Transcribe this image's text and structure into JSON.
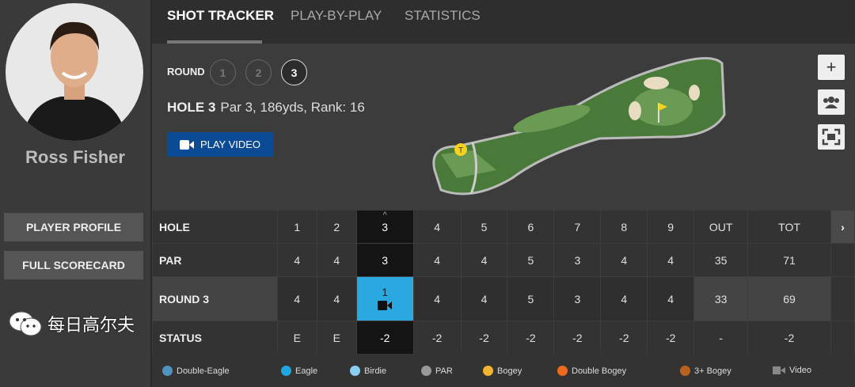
{
  "player": {
    "name": "Ross Fisher",
    "profile_label": "PLAYER PROFILE",
    "scorecard_label": "FULL SCORECARD"
  },
  "tabs": [
    {
      "label": "SHOT TRACKER",
      "active": true
    },
    {
      "label": "PLAY-BY-PLAY"
    },
    {
      "label": "STATISTICS"
    }
  ],
  "round": {
    "label": "ROUND",
    "options": [
      "1",
      "2",
      "3"
    ],
    "selected": "3"
  },
  "hole": {
    "title": "HOLE 3",
    "info": "Par 3, 186yds, Rank: 16",
    "tee_marker": "T"
  },
  "play_video_label": "PLAY VIDEO",
  "controls": [
    {
      "icon": "plus-icon"
    },
    {
      "icon": "group-icon"
    },
    {
      "icon": "fullscreen-icon"
    }
  ],
  "scorecard": {
    "holes": {
      "label": "HOLE",
      "values": [
        "1",
        "2",
        "3",
        "4",
        "5",
        "6",
        "7",
        "8",
        "9",
        "OUT",
        "TOT"
      ]
    },
    "par": {
      "label": "PAR",
      "values": [
        "4",
        "4",
        "3",
        "4",
        "4",
        "5",
        "3",
        "4",
        "4",
        "35",
        "71"
      ]
    },
    "round3": {
      "label": "ROUND 3",
      "values": [
        "4",
        "4",
        "1",
        "4",
        "4",
        "5",
        "3",
        "4",
        "4",
        "33",
        "69"
      ]
    },
    "status": {
      "label": "STATUS",
      "values": [
        "E",
        "E",
        "-2",
        "-2",
        "-2",
        "-2",
        "-2",
        "-2",
        "-2",
        "-",
        "-2"
      ]
    },
    "current_hole": "3"
  },
  "legend": [
    {
      "label": "Double-Eagle",
      "color": "#4f93c0"
    },
    {
      "label": "Eagle",
      "color": "#1ea7e0"
    },
    {
      "label": "Birdie",
      "color": "#8ccdf2"
    },
    {
      "label": "PAR",
      "color": "#999999"
    },
    {
      "label": "Bogey",
      "color": "#f2b430"
    },
    {
      "label": "Double Bogey",
      "color": "#ee6a1d"
    },
    {
      "label": "3+ Bogey",
      "color": "#b8621e"
    },
    {
      "label": "Video",
      "color": "#888888"
    }
  ],
  "watermark": "每日高尔夫"
}
